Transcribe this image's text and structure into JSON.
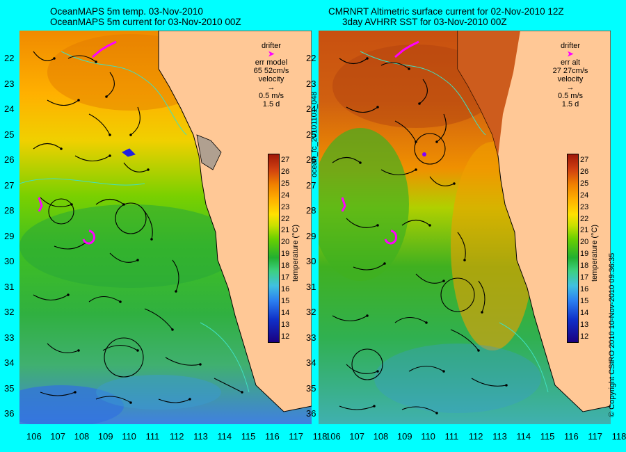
{
  "left": {
    "title_line1": "OceanMAPS 5m temp. 03-Nov-2010",
    "title_line2": "OceanMAPS 5m current for 03-Nov-2010 00Z",
    "legend": {
      "drifter": "drifter",
      "err_label": "err model",
      "err_value": "65 52cm/s",
      "velocity": "velocity",
      "speed": "0.5 m/s",
      "duration": "1.5 d"
    }
  },
  "right": {
    "title_line1": "CMRNRT Altimetric surface current for 02-Nov-2010 12Z",
    "title_line2": "3day AVHRR SST for 03-Nov-2010 00Z",
    "legend": {
      "drifter": "drifter",
      "err_label": "err alt",
      "err_value": "27 27cm/s",
      "velocity": "velocity",
      "speed": "0.5 m/s",
      "duration": "1.5 d"
    }
  },
  "file_id": "ocean_fc_20101101_048",
  "copyright": "© Copyright CSIRO 2010   10-Nov-2010 09:36:35",
  "colorbar": {
    "label": "temperature (°C)",
    "ticks": [
      "27",
      "26",
      "25",
      "24",
      "23",
      "22",
      "21",
      "20",
      "19",
      "18",
      "17",
      "16",
      "15",
      "14",
      "13",
      "12"
    ]
  },
  "lat_ticks": [
    "22",
    "23",
    "24",
    "25",
    "26",
    "27",
    "28",
    "29",
    "30",
    "31",
    "32",
    "33",
    "34",
    "35",
    "36"
  ],
  "lon_ticks": [
    "106",
    "107",
    "108",
    "109",
    "110",
    "111",
    "112",
    "113",
    "114",
    "115",
    "116",
    "117",
    "118"
  ],
  "colors": {
    "background": "#00ffff",
    "land": "#ffc896",
    "drifter": "#ff00ff",
    "coast": "#40e0c0"
  }
}
